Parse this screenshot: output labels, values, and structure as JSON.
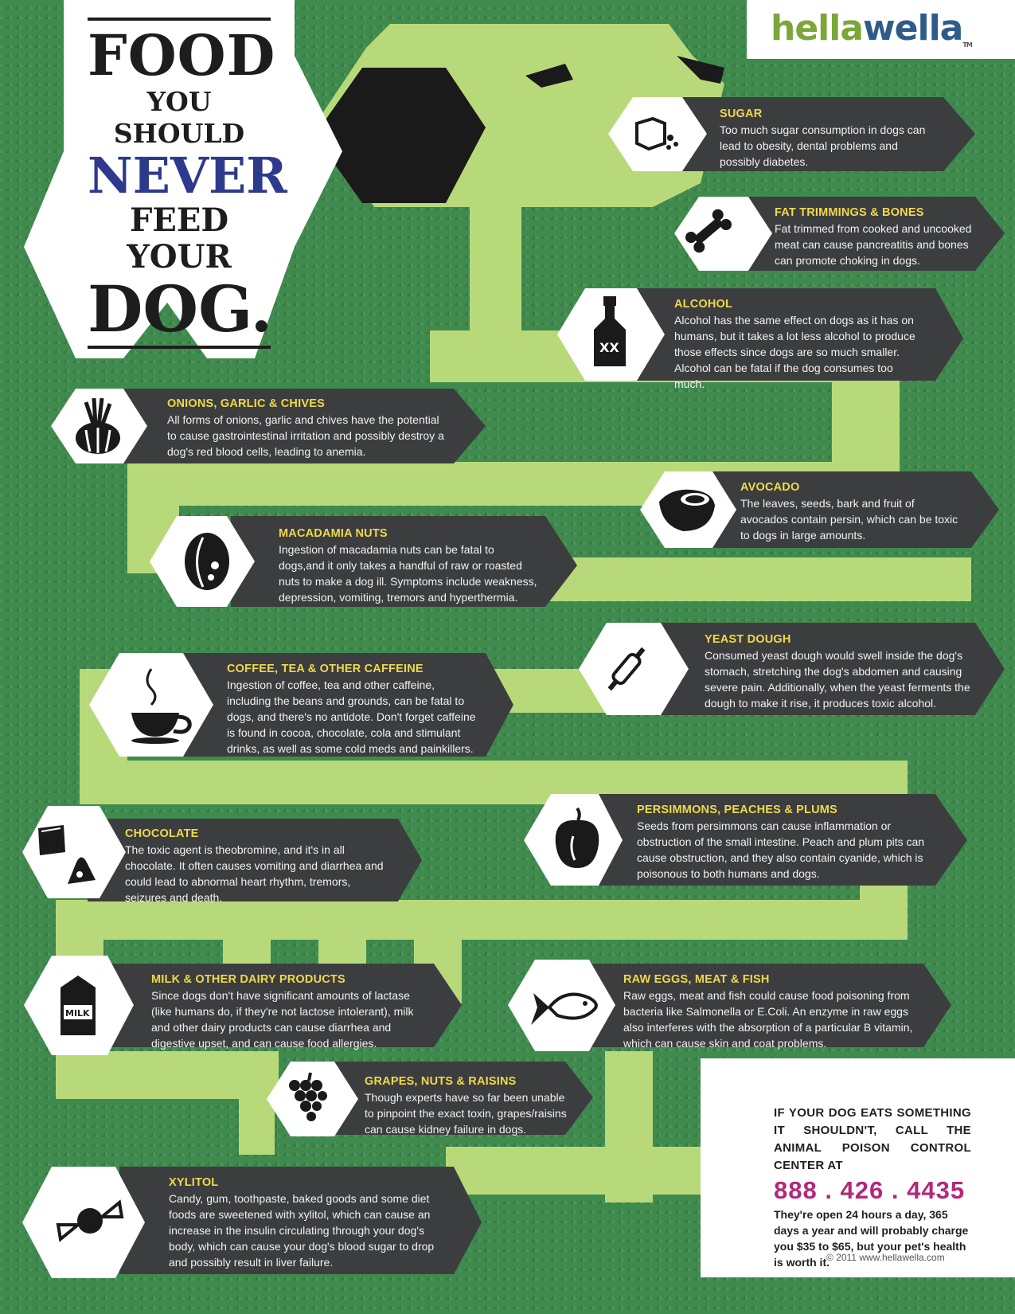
{
  "brand": {
    "part1": "hella",
    "part2": "wella",
    "tm": "TM"
  },
  "title": {
    "line1": "FOOD",
    "line2": "YOU SHOULD",
    "line3": "NEVER",
    "line4": "FEED YOUR",
    "line5": "DOG."
  },
  "foods": [
    {
      "title": "SUGAR",
      "text": "Too much sugar consumption in dogs can lead to obesity, dental problems and possibly diabetes.",
      "icon": "sugar-cube-icon"
    },
    {
      "title": "FAT TRIMMINGS & BONES",
      "text": "Fat trimmed from cooked and uncooked meat can cause pancreatitis and bones can promote choking in dogs.",
      "icon": "bone-icon"
    },
    {
      "title": "ALCOHOL",
      "text": "Alcohol has the same effect on dogs as it has on humans, but it takes a lot less alcohol to produce those effects since dogs are so much smaller. Alcohol can be fatal if the dog consumes too much.",
      "icon": "bottle-icon"
    },
    {
      "title": "ONIONS, GARLIC & CHIVES",
      "text": "All forms of onions, garlic and chives have the potential to cause gastrointestinal irritation and possibly destroy a dog's red blood cells, leading to anemia.",
      "icon": "garlic-icon"
    },
    {
      "title": "AVOCADO",
      "text": "The leaves, seeds, bark and fruit of avocados contain persin, which can be toxic to dogs in large amounts.",
      "icon": "avocado-icon"
    },
    {
      "title": "MACADAMIA NUTS",
      "text": "Ingestion of macadamia nuts can be fatal to dogs,and it only takes a handful of raw or roasted nuts to make a dog ill. Symptoms include weakness, depression, vomiting, tremors and hyperthermia.",
      "icon": "nut-icon"
    },
    {
      "title": "YEAST DOUGH",
      "text": "Consumed yeast dough would swell inside the dog's stomach, stretching the dog's abdomen and causing severe pain. Additionally, when the yeast ferments the dough to make it rise, it produces toxic alcohol.",
      "icon": "rolling-pin-icon"
    },
    {
      "title": "COFFEE, TEA & OTHER CAFFEINE",
      "text": "Ingestion of coffee, tea and other caffeine, including the beans and grounds, can be fatal to dogs, and there's no antidote. Don't forget caffeine is found in cocoa, chocolate, cola and stimulant drinks, as well as some cold meds and painkillers.",
      "icon": "coffee-cup-icon"
    },
    {
      "title": "PERSIMMONS, PEACHES & PLUMS",
      "text": "Seeds from persimmons can cause inflammation or obstruction of the small intestine. Peach and plum pits can cause obstruction, and they also contain cyanide, which is poisonous to both humans and dogs.",
      "icon": "fruit-icon"
    },
    {
      "title": "CHOCOLATE",
      "text": "The toxic agent is theobromine, and it's in all chocolate. It often causes vomiting and diarrhea and could lead to abnormal heart rhythm, tremors, seizures and death.",
      "icon": "chocolate-icon"
    },
    {
      "title": "MILK & OTHER DAIRY PRODUCTS",
      "text": "Since dogs don't have significant amounts of lactase (like humans do, if they're not lactose intolerant), milk and other dairy products can cause diarrhea and digestive upset, and can cause food allergies.",
      "icon": "milk-carton-icon",
      "icon_label": "MILK"
    },
    {
      "title": "RAW EGGS, MEAT & FISH",
      "text": "Raw eggs, meat and fish could cause food poisoning from bacteria like Salmonella or E.Coli. An enzyme in raw eggs also interferes with the absorption of a particular B vitamin, which can cause skin and coat problems.",
      "icon": "fish-icon"
    },
    {
      "title": "GRAPES, NUTS & RAISINS",
      "text": "Though experts have so far been unable to pinpoint the exact toxin, grapes/raisins can cause kidney failure in dogs.",
      "icon": "grapes-icon"
    },
    {
      "title": "XYLITOL",
      "text": "Candy, gum, toothpaste, baked goods and some diet foods are sweetened with xylitol, which can cause an increase in the insulin circulating through your dog's body, which can cause your dog's blood sugar to drop and possibly result in liver failure.",
      "icon": "candy-icon"
    }
  ],
  "cta": {
    "heading": "IF YOUR DOG EATS SOMETHING IT SHOULDN'T, CALL THE ANIMAL POISON CONTROL CENTER AT",
    "phone": "888 . 426 . 4435",
    "note": "They're open 24 hours a day, 365 days a year and will probably charge you $35 to $65, but your pet's health is worth it."
  },
  "copyright": "© 2011 www.hellawella.com",
  "colors": {
    "background": "#3f8a4d",
    "dog": "#b8d97a",
    "card": "#3c3d3f",
    "card_title": "#f0d94a",
    "accent_blue": "#2d3a8c",
    "phone": "#b3287a"
  }
}
